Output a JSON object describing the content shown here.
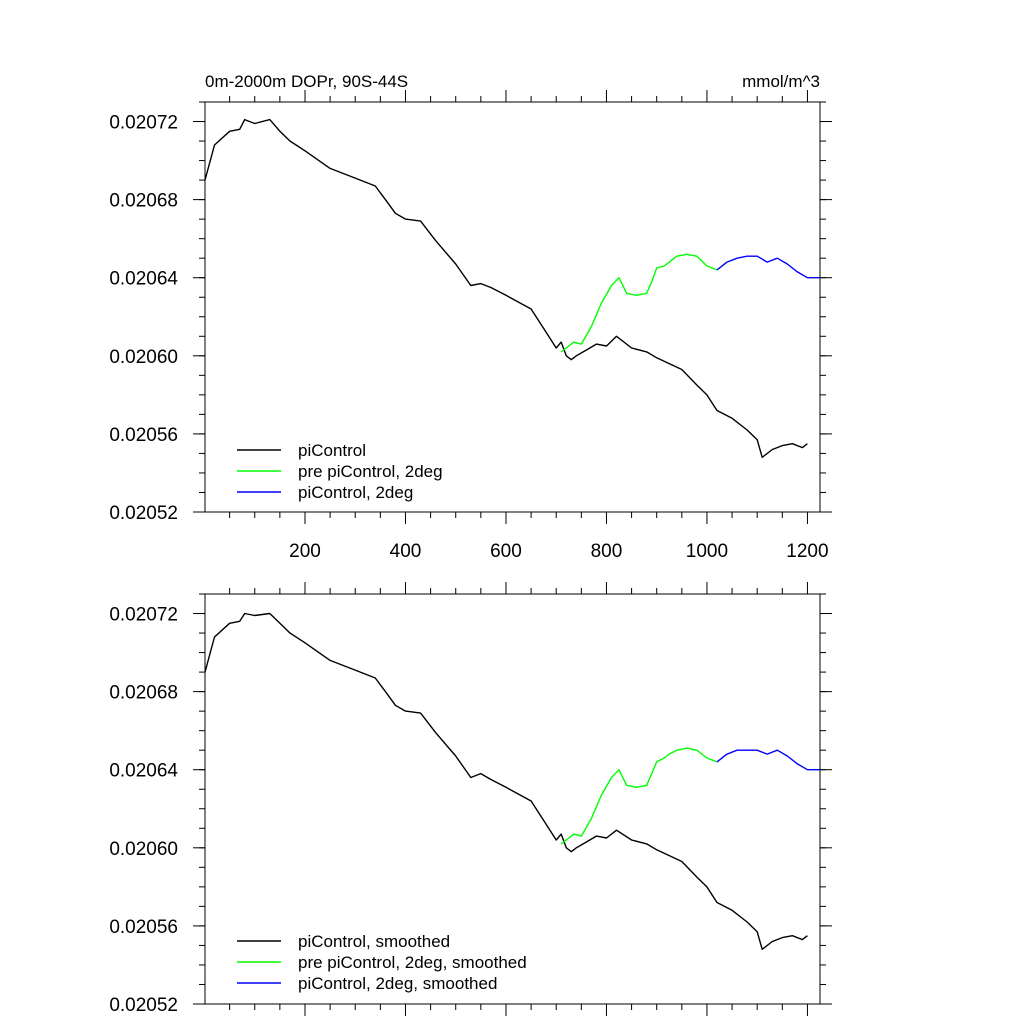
{
  "colors": {
    "background": "#ffffff",
    "axis": "#000000",
    "piControl": "#000000",
    "pre_piControl_2deg": "#00ff00",
    "piControl_2deg": "#0000ff"
  },
  "chart_data": [
    {
      "type": "line",
      "title": "0m-2000m DOPr, 90S-44S",
      "units": "mmol/m^3",
      "xlabel": "",
      "ylabel": "",
      "xlim": [
        1,
        1225
      ],
      "ylim": [
        0.02052,
        0.02073
      ],
      "x_ticks": [
        200,
        400,
        600,
        800,
        1000,
        1200
      ],
      "x_tick_labels": [
        "200",
        "400",
        "600",
        "800",
        "1000",
        "1200"
      ],
      "y_ticks": [
        0.02052,
        0.02056,
        0.0206,
        0.02064,
        0.02068,
        0.02072
      ],
      "y_tick_labels": [
        "0.02052",
        "0.02056",
        "0.02060",
        "0.02064",
        "0.02068",
        "0.02072"
      ],
      "grid": false,
      "legend_position": "bottom-left",
      "series": [
        {
          "name": "piControl",
          "color": "#000000",
          "x": [
            1,
            20,
            50,
            70,
            80,
            100,
            130,
            150,
            170,
            200,
            250,
            300,
            340,
            360,
            380,
            400,
            430,
            460,
            500,
            530,
            550,
            570,
            600,
            650,
            680,
            700,
            710,
            720,
            730,
            740,
            760,
            780,
            800,
            820,
            850,
            880,
            900,
            950,
            980,
            1000,
            1020,
            1050,
            1080,
            1100,
            1110,
            1130,
            1150,
            1170,
            1190,
            1200
          ],
          "y": [
            0.02069,
            0.020708,
            0.020715,
            0.020716,
            0.020721,
            0.020719,
            0.020721,
            0.020715,
            0.02071,
            0.020705,
            0.020696,
            0.020691,
            0.020687,
            0.02068,
            0.020673,
            0.02067,
            0.020669,
            0.020659,
            0.020647,
            0.020636,
            0.020637,
            0.020635,
            0.020631,
            0.020624,
            0.020612,
            0.020604,
            0.020607,
            0.0206,
            0.020598,
            0.0206,
            0.020603,
            0.020606,
            0.020605,
            0.02061,
            0.020604,
            0.020602,
            0.020599,
            0.020593,
            0.020585,
            0.02058,
            0.020572,
            0.020568,
            0.020562,
            0.020557,
            0.020548,
            0.020552,
            0.020554,
            0.020555,
            0.020553,
            0.020555
          ]
        },
        {
          "name": "pre piControl, 2deg",
          "color": "#00ff00",
          "x": [
            710,
            725,
            735,
            750,
            770,
            790,
            810,
            825,
            840,
            860,
            880,
            890,
            900,
            915,
            925,
            940,
            960,
            980,
            1000,
            1020
          ],
          "y": [
            0.020602,
            0.020605,
            0.020607,
            0.020606,
            0.020615,
            0.020627,
            0.020636,
            0.02064,
            0.020632,
            0.020631,
            0.020632,
            0.020638,
            0.020645,
            0.020646,
            0.020648,
            0.020651,
            0.020652,
            0.020651,
            0.020646,
            0.020644
          ]
        },
        {
          "name": "piControl, 2deg",
          "color": "#0000ff",
          "x": [
            1020,
            1040,
            1060,
            1080,
            1100,
            1120,
            1140,
            1160,
            1180,
            1200,
            1225
          ],
          "y": [
            0.020644,
            0.020648,
            0.02065,
            0.020651,
            0.020651,
            0.020648,
            0.02065,
            0.020647,
            0.020643,
            0.02064,
            0.02064
          ]
        }
      ]
    },
    {
      "type": "line",
      "title": "",
      "xlabel": "",
      "ylabel": "",
      "xlim": [
        1,
        1225
      ],
      "ylim": [
        0.02052,
        0.02073
      ],
      "x_ticks": [
        200,
        400,
        600,
        800,
        1000,
        1200
      ],
      "y_ticks": [
        0.02052,
        0.02056,
        0.0206,
        0.02064,
        0.02068,
        0.02072
      ],
      "y_tick_labels": [
        "0.02052",
        "0.02056",
        "0.02060",
        "0.02064",
        "0.02068",
        "0.02072"
      ],
      "grid": false,
      "legend_position": "bottom-left",
      "series": [
        {
          "name": "piControl, smoothed",
          "color": "#000000",
          "x": [
            1,
            20,
            50,
            70,
            80,
            100,
            130,
            150,
            170,
            200,
            250,
            300,
            340,
            360,
            380,
            400,
            430,
            460,
            500,
            530,
            550,
            570,
            600,
            650,
            680,
            700,
            710,
            720,
            730,
            740,
            760,
            780,
            800,
            820,
            850,
            880,
            900,
            950,
            980,
            1000,
            1020,
            1050,
            1080,
            1100,
            1110,
            1130,
            1150,
            1170,
            1190,
            1200
          ],
          "y": [
            0.02069,
            0.020708,
            0.020715,
            0.020716,
            0.02072,
            0.020719,
            0.02072,
            0.020715,
            0.02071,
            0.020705,
            0.020696,
            0.020691,
            0.020687,
            0.02068,
            0.020673,
            0.02067,
            0.020669,
            0.020659,
            0.020647,
            0.020636,
            0.020638,
            0.020635,
            0.020631,
            0.020624,
            0.020612,
            0.020604,
            0.020607,
            0.0206,
            0.020598,
            0.0206,
            0.020603,
            0.020606,
            0.020605,
            0.020609,
            0.020604,
            0.020602,
            0.020599,
            0.020593,
            0.020585,
            0.02058,
            0.020572,
            0.020568,
            0.020562,
            0.020557,
            0.020548,
            0.020552,
            0.020554,
            0.020555,
            0.020553,
            0.020555
          ]
        },
        {
          "name": "pre piControl, 2deg, smoothed",
          "color": "#00ff00",
          "x": [
            710,
            725,
            735,
            750,
            770,
            790,
            810,
            825,
            840,
            860,
            880,
            890,
            900,
            915,
            925,
            940,
            960,
            980,
            1000,
            1020
          ],
          "y": [
            0.020602,
            0.020605,
            0.020607,
            0.020606,
            0.020615,
            0.020627,
            0.020636,
            0.02064,
            0.020632,
            0.020631,
            0.020632,
            0.020638,
            0.020644,
            0.020646,
            0.020648,
            0.02065,
            0.020651,
            0.02065,
            0.020646,
            0.020644
          ]
        },
        {
          "name": "piControl, 2deg, smoothed",
          "color": "#0000ff",
          "x": [
            1020,
            1040,
            1060,
            1080,
            1100,
            1120,
            1140,
            1160,
            1180,
            1200,
            1225
          ],
          "y": [
            0.020644,
            0.020648,
            0.02065,
            0.02065,
            0.02065,
            0.020648,
            0.02065,
            0.020647,
            0.020643,
            0.02064,
            0.02064
          ]
        }
      ]
    }
  ]
}
